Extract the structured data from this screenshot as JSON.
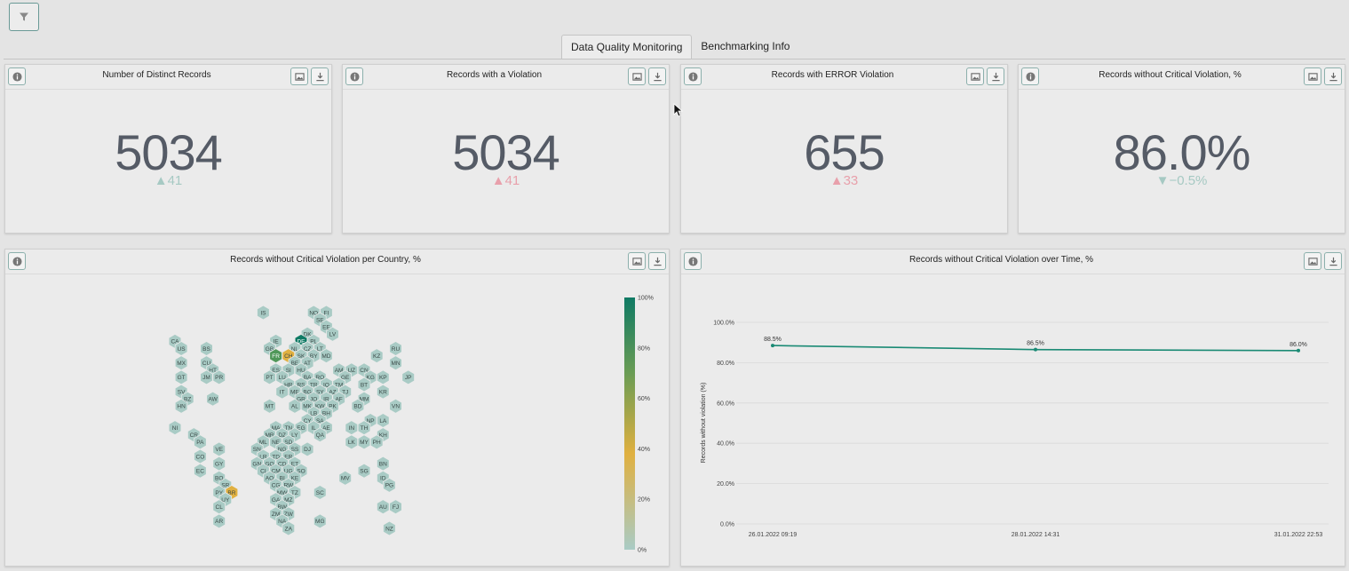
{
  "tabs": [
    {
      "label": "Data Quality Monitoring",
      "active": true
    },
    {
      "label": "Benchmarking Info",
      "active": false
    }
  ],
  "kpis": [
    {
      "title": "Number of Distinct Records",
      "value": "5034",
      "delta": "▲41",
      "delta_color": "#a6c9c3"
    },
    {
      "title": "Records with a Violation",
      "value": "5034",
      "delta": "▲41",
      "delta_color": "#e8a0ab"
    },
    {
      "title": "Records with ERROR Violation",
      "value": "655",
      "delta": "▲33",
      "delta_color": "#e8a0ab"
    },
    {
      "title": "Records without Critical Violation, %",
      "value": "86.0%",
      "delta": "▼−0.5%",
      "delta_color": "#a6c9c3"
    }
  ],
  "map_panel": {
    "title": "Records without Critical Violation per Country, %",
    "legend_ticks": [
      "100%",
      "80%",
      "60%",
      "40%",
      "20%",
      "0%"
    ],
    "colors": {
      "low": "#a9cbc5",
      "mid": "#e0b040",
      "high": "#0f7a64"
    },
    "countries": [
      {
        "code": "IS",
        "value": null
      },
      {
        "code": "NO",
        "value": null
      },
      {
        "code": "FI",
        "value": null
      },
      {
        "code": "SE",
        "value": null
      },
      {
        "code": "EE",
        "value": null
      },
      {
        "code": "DK",
        "value": null
      },
      {
        "code": "LV",
        "value": null
      },
      {
        "code": "CA",
        "value": null
      },
      {
        "code": "IE",
        "value": null
      },
      {
        "code": "DE",
        "value": 96
      },
      {
        "code": "PL",
        "value": null
      },
      {
        "code": "LT",
        "value": null
      },
      {
        "code": "RU",
        "value": null
      },
      {
        "code": "US",
        "value": null
      },
      {
        "code": "BS",
        "value": null
      },
      {
        "code": "GB",
        "value": null
      },
      {
        "code": "NL",
        "value": null
      },
      {
        "code": "CZ",
        "value": null
      },
      {
        "code": "BY",
        "value": null
      },
      {
        "code": "FR",
        "value": 85
      },
      {
        "code": "CH",
        "value": 45
      },
      {
        "code": "SK",
        "value": null
      },
      {
        "code": "MD",
        "value": null
      },
      {
        "code": "KZ",
        "value": null
      },
      {
        "code": "MX",
        "value": null
      },
      {
        "code": "CU",
        "value": null
      },
      {
        "code": "BE",
        "value": null
      },
      {
        "code": "AT",
        "value": null
      },
      {
        "code": "MN",
        "value": null
      },
      {
        "code": "HT",
        "value": null
      },
      {
        "code": "ES",
        "value": null
      },
      {
        "code": "SI",
        "value": null
      },
      {
        "code": "HU",
        "value": null
      },
      {
        "code": "AM",
        "value": null
      },
      {
        "code": "UZ",
        "value": null
      },
      {
        "code": "CN",
        "value": null
      },
      {
        "code": "GT",
        "value": null
      },
      {
        "code": "JM",
        "value": null
      },
      {
        "code": "PR",
        "value": null
      },
      {
        "code": "PT",
        "value": null
      },
      {
        "code": "LU",
        "value": null
      },
      {
        "code": "BA",
        "value": null
      },
      {
        "code": "RO",
        "value": null
      },
      {
        "code": "GE",
        "value": null
      },
      {
        "code": "KG",
        "value": null
      },
      {
        "code": "KP",
        "value": null
      },
      {
        "code": "JP",
        "value": null
      },
      {
        "code": "HR",
        "value": null
      },
      {
        "code": "RS",
        "value": null
      },
      {
        "code": "TR",
        "value": null
      },
      {
        "code": "IQ",
        "value": null
      },
      {
        "code": "TM",
        "value": null
      },
      {
        "code": "BT",
        "value": null
      },
      {
        "code": "SV",
        "value": null
      },
      {
        "code": "IT",
        "value": null
      },
      {
        "code": "ME",
        "value": null
      },
      {
        "code": "BG",
        "value": null
      },
      {
        "code": "SY",
        "value": null
      },
      {
        "code": "AZ",
        "value": null
      },
      {
        "code": "TJ",
        "value": null
      },
      {
        "code": "KR",
        "value": null
      },
      {
        "code": "BZ",
        "value": null
      },
      {
        "code": "AW",
        "value": null
      },
      {
        "code": "GR",
        "value": null
      },
      {
        "code": "JO",
        "value": null
      },
      {
        "code": "IR",
        "value": null
      },
      {
        "code": "AF",
        "value": null
      },
      {
        "code": "MM",
        "value": null
      },
      {
        "code": "HN",
        "value": null
      },
      {
        "code": "MT",
        "value": null
      },
      {
        "code": "AL",
        "value": null
      },
      {
        "code": "MK",
        "value": null
      },
      {
        "code": "KW",
        "value": null
      },
      {
        "code": "PK",
        "value": null
      },
      {
        "code": "BD",
        "value": null
      },
      {
        "code": "VN",
        "value": null
      },
      {
        "code": "LB",
        "value": null
      },
      {
        "code": "BH",
        "value": null
      },
      {
        "code": "CY",
        "value": null
      },
      {
        "code": "SA",
        "value": null
      },
      {
        "code": "NP",
        "value": null
      },
      {
        "code": "LA",
        "value": null
      },
      {
        "code": "NI",
        "value": null
      },
      {
        "code": "MA",
        "value": null
      },
      {
        "code": "TN",
        "value": null
      },
      {
        "code": "EG",
        "value": null
      },
      {
        "code": "IL",
        "value": null
      },
      {
        "code": "AE",
        "value": null
      },
      {
        "code": "IN",
        "value": null
      },
      {
        "code": "TH",
        "value": null
      },
      {
        "code": "CR",
        "value": null
      },
      {
        "code": "MR",
        "value": null
      },
      {
        "code": "DZ",
        "value": null
      },
      {
        "code": "LY",
        "value": null
      },
      {
        "code": "QA",
        "value": null
      },
      {
        "code": "KH",
        "value": null
      },
      {
        "code": "PA",
        "value": null
      },
      {
        "code": "ML",
        "value": null
      },
      {
        "code": "NE",
        "value": null
      },
      {
        "code": "SD",
        "value": null
      },
      {
        "code": "LK",
        "value": null
      },
      {
        "code": "MY",
        "value": null
      },
      {
        "code": "PH",
        "value": null
      },
      {
        "code": "VE",
        "value": null
      },
      {
        "code": "SN",
        "value": null
      },
      {
        "code": "NG",
        "value": null
      },
      {
        "code": "SS",
        "value": null
      },
      {
        "code": "DJ",
        "value": null
      },
      {
        "code": "CO",
        "value": null
      },
      {
        "code": "LR",
        "value": null
      },
      {
        "code": "TD",
        "value": null
      },
      {
        "code": "ER",
        "value": null
      },
      {
        "code": "GY",
        "value": null
      },
      {
        "code": "GN",
        "value": null
      },
      {
        "code": "GQ",
        "value": null
      },
      {
        "code": "CD",
        "value": null
      },
      {
        "code": "ET",
        "value": null
      },
      {
        "code": "BN",
        "value": null
      },
      {
        "code": "EC",
        "value": null
      },
      {
        "code": "CI",
        "value": null
      },
      {
        "code": "CM",
        "value": null
      },
      {
        "code": "UG",
        "value": null
      },
      {
        "code": "SO",
        "value": null
      },
      {
        "code": "SG",
        "value": null
      },
      {
        "code": "BO",
        "value": null
      },
      {
        "code": "AO",
        "value": null
      },
      {
        "code": "BI",
        "value": null
      },
      {
        "code": "KE",
        "value": null
      },
      {
        "code": "MV",
        "value": null
      },
      {
        "code": "ID",
        "value": null
      },
      {
        "code": "SR",
        "value": null
      },
      {
        "code": "CG",
        "value": null
      },
      {
        "code": "RW",
        "value": null
      },
      {
        "code": "PG",
        "value": null
      },
      {
        "code": "PY",
        "value": null
      },
      {
        "code": "BR",
        "value": 40
      },
      {
        "code": "MW",
        "value": null
      },
      {
        "code": "TZ",
        "value": null
      },
      {
        "code": "SC",
        "value": null
      },
      {
        "code": "UY",
        "value": null
      },
      {
        "code": "GA",
        "value": null
      },
      {
        "code": "MZ",
        "value": null
      },
      {
        "code": "CL",
        "value": null
      },
      {
        "code": "BW",
        "value": null
      },
      {
        "code": "AU",
        "value": null
      },
      {
        "code": "FJ",
        "value": null
      },
      {
        "code": "ZM",
        "value": null
      },
      {
        "code": "ZW",
        "value": null
      },
      {
        "code": "AR",
        "value": null
      },
      {
        "code": "NA",
        "value": null
      },
      {
        "code": "MG",
        "value": null
      },
      {
        "code": "ZA",
        "value": null
      },
      {
        "code": "NZ",
        "value": null
      }
    ]
  },
  "line_panel": {
    "title": "Records without Critical Violation over Time, %",
    "chart_data": {
      "type": "line",
      "categories": [
        "26.01.2022 09:19",
        "28.01.2022 14:31",
        "31.01.2022 22:53"
      ],
      "series": [
        {
          "values": [
            88.5,
            86.5,
            86.0
          ],
          "labels": [
            "88.5%",
            "86.5%",
            "86.0%"
          ],
          "color": "#1a8a74"
        }
      ],
      "ylabel": "Records without violation (%)",
      "yticks": [
        "100.0%",
        "80.0%",
        "60.0%",
        "40.0%",
        "20.0%",
        "0.0%"
      ],
      "ylim": [
        0,
        100
      ],
      "grid": true
    }
  }
}
